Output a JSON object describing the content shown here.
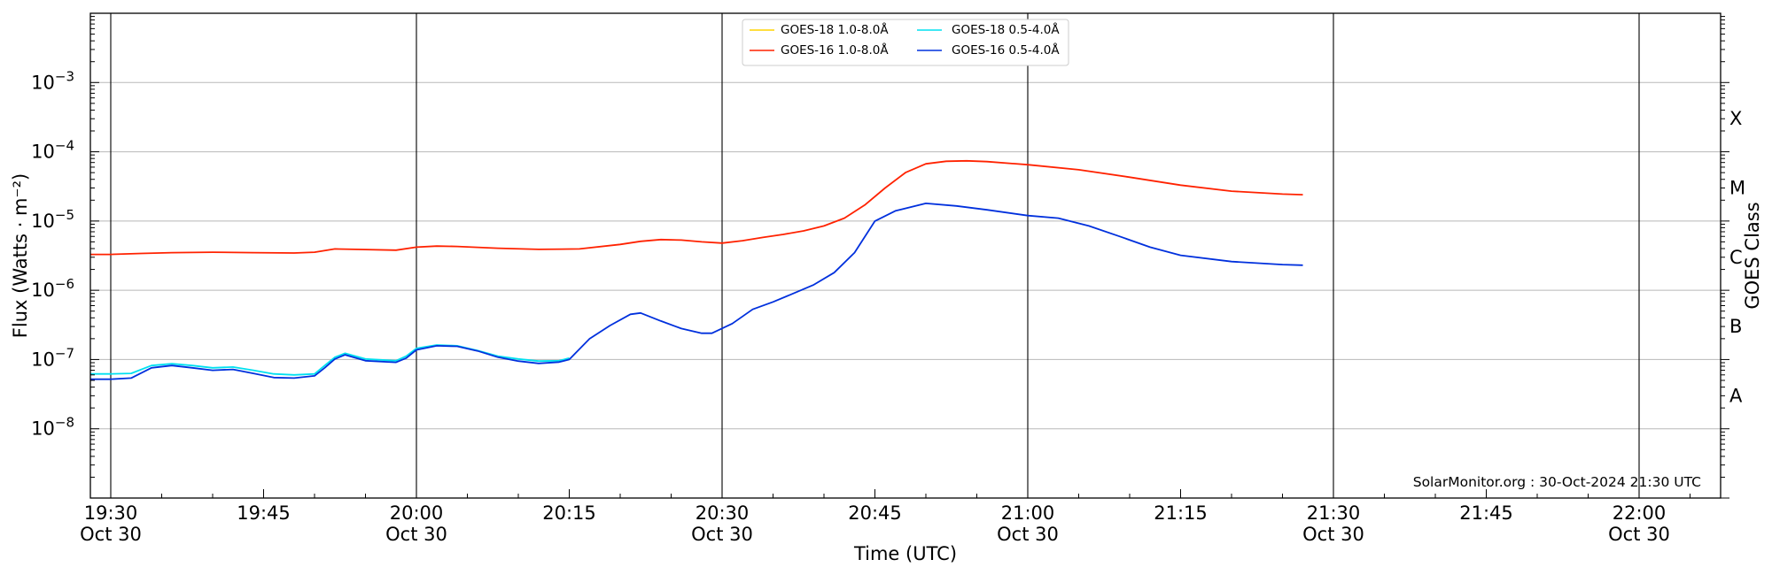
{
  "chart_data": {
    "type": "line",
    "x_axis": {
      "label": "Time (UTC)",
      "range": [
        "19:28",
        "22:08"
      ],
      "ticks": [
        {
          "time": "19:30",
          "label": "19:30",
          "date": "Oct 30"
        },
        {
          "time": "19:45",
          "label": "19:45",
          "date": ""
        },
        {
          "time": "20:00",
          "label": "20:00",
          "date": "Oct 30"
        },
        {
          "time": "20:15",
          "label": "20:15",
          "date": ""
        },
        {
          "time": "20:30",
          "label": "20:30",
          "date": "Oct 30"
        },
        {
          "time": "20:45",
          "label": "20:45",
          "date": ""
        },
        {
          "time": "21:00",
          "label": "21:00",
          "date": "Oct 30"
        },
        {
          "time": "21:15",
          "label": "21:15",
          "date": ""
        },
        {
          "time": "21:30",
          "label": "21:30",
          "date": "Oct 30"
        },
        {
          "time": "21:45",
          "label": "21:45",
          "date": ""
        },
        {
          "time": "22:00",
          "label": "22:00",
          "date": "Oct 30"
        }
      ],
      "vertical_lines": [
        "19:30",
        "20:00",
        "20:30",
        "21:00",
        "21:30",
        "22:00"
      ]
    },
    "y_axis": {
      "label": "Flux (Watts · m⁻²)",
      "scale": "log",
      "range": [
        1e-09,
        0.01
      ],
      "ticks": [
        {
          "value": 1e-08,
          "base": "10",
          "exp": "−8"
        },
        {
          "value": 1e-07,
          "base": "10",
          "exp": "−7"
        },
        {
          "value": 1e-06,
          "base": "10",
          "exp": "−6"
        },
        {
          "value": 1e-05,
          "base": "10",
          "exp": "−5"
        },
        {
          "value": 0.0001,
          "base": "10",
          "exp": "−4"
        },
        {
          "value": 0.001,
          "base": "10",
          "exp": "−3"
        }
      ],
      "grid": true
    },
    "right_axis": {
      "label": "GOES Class",
      "classes": [
        {
          "label": "A",
          "value": 3e-08
        },
        {
          "label": "B",
          "value": 3e-07
        },
        {
          "label": "C",
          "value": 3e-06
        },
        {
          "label": "M",
          "value": 3e-05
        },
        {
          "label": "X",
          "value": 0.0003
        }
      ]
    },
    "legend": {
      "placement": "top-center",
      "columns": 2
    },
    "credit": "SolarMonitor.org : 30-Oct-2024 21:30 UTC",
    "series": [
      {
        "name": "GOES-18 1.0-8.0Å",
        "color": "#ffd400",
        "x": [],
        "y": []
      },
      {
        "name": "GOES-16 1.0-8.0Å",
        "color": "#ff2200",
        "x": [
          "19:28",
          "19:30",
          "19:33",
          "19:36",
          "19:40",
          "19:44",
          "19:48",
          "19:50",
          "19:52",
          "19:54",
          "19:58",
          "20:00",
          "20:02",
          "20:04",
          "20:08",
          "20:12",
          "20:16",
          "20:20",
          "20:22",
          "20:24",
          "20:26",
          "20:28",
          "20:30",
          "20:32",
          "20:34",
          "20:36",
          "20:38",
          "20:40",
          "20:42",
          "20:44",
          "20:46",
          "20:48",
          "20:50",
          "20:52",
          "20:54",
          "20:56",
          "21:00",
          "21:05",
          "21:10",
          "21:15",
          "21:20",
          "21:25",
          "21:27"
        ],
        "y": [
          3.3e-06,
          3.3e-06,
          3.4e-06,
          3.5e-06,
          3.55e-06,
          3.5e-06,
          3.45e-06,
          3.55e-06,
          3.95e-06,
          3.9e-06,
          3.8e-06,
          4.2e-06,
          4.35e-06,
          4.3e-06,
          4.05e-06,
          3.9e-06,
          3.95e-06,
          4.6e-06,
          5.1e-06,
          5.4e-06,
          5.3e-06,
          5e-06,
          4.8e-06,
          5.2e-06,
          5.8e-06,
          6.4e-06,
          7.2e-06,
          8.5e-06,
          1.1e-05,
          1.7e-05,
          3e-05,
          5e-05,
          6.7e-05,
          7.3e-05,
          7.4e-05,
          7.2e-05,
          6.5e-05,
          5.5e-05,
          4.3e-05,
          3.3e-05,
          2.7e-05,
          2.45e-05,
          2.4e-05
        ]
      },
      {
        "name": "GOES-18 0.5-4.0Å",
        "color": "#00e0f0",
        "x": [
          "19:28",
          "19:30",
          "19:32",
          "19:34",
          "19:36",
          "19:38",
          "19:40",
          "19:42",
          "19:44",
          "19:46",
          "19:48",
          "19:50",
          "19:51",
          "19:52",
          "19:53",
          "19:55",
          "19:58",
          "19:59",
          "20:00",
          "20:02",
          "20:04",
          "20:06",
          "20:08",
          "20:10",
          "20:12",
          "20:14",
          "20:15"
        ],
        "y": [
          6.2e-08,
          6.2e-08,
          6.3e-08,
          8.2e-08,
          8.7e-08,
          8.2e-08,
          7.6e-08,
          7.8e-08,
          7e-08,
          6.2e-08,
          6e-08,
          6.2e-08,
          8.2e-08,
          1.08e-07,
          1.23e-07,
          1.02e-07,
          9.6e-08,
          1.12e-07,
          1.45e-07,
          1.62e-07,
          1.58e-07,
          1.35e-07,
          1.12e-07,
          1.02e-07,
          9.5e-08,
          9.6e-08,
          1.05e-07
        ]
      },
      {
        "name": "GOES-16 0.5-4.0Å",
        "color": "#0030dd",
        "x": [
          "19:28",
          "19:30",
          "19:32",
          "19:34",
          "19:36",
          "19:38",
          "19:40",
          "19:42",
          "19:44",
          "19:46",
          "19:48",
          "19:50",
          "19:51",
          "19:52",
          "19:53",
          "19:55",
          "19:58",
          "19:59",
          "20:00",
          "20:02",
          "20:04",
          "20:06",
          "20:08",
          "20:10",
          "20:12",
          "20:14",
          "20:15",
          "20:17",
          "20:19",
          "20:21",
          "20:22",
          "20:24",
          "20:26",
          "20:28",
          "20:29",
          "20:31",
          "20:33",
          "20:35",
          "20:37",
          "20:39",
          "20:41",
          "20:43",
          "20:45",
          "20:47",
          "20:50",
          "20:53",
          "20:56",
          "21:00",
          "21:03",
          "21:06",
          "21:09",
          "21:12",
          "21:15",
          "21:20",
          "21:25",
          "21:27"
        ],
        "y": [
          5.2e-08,
          5.2e-08,
          5.4e-08,
          7.6e-08,
          8.2e-08,
          7.6e-08,
          7e-08,
          7.2e-08,
          6.3e-08,
          5.5e-08,
          5.4e-08,
          5.8e-08,
          7.6e-08,
          1.02e-07,
          1.17e-07,
          9.6e-08,
          9.1e-08,
          1.05e-07,
          1.38e-07,
          1.58e-07,
          1.55e-07,
          1.33e-07,
          1.08e-07,
          9.5e-08,
          8.8e-08,
          9.2e-08,
          1e-07,
          2e-07,
          3.1e-07,
          4.5e-07,
          4.7e-07,
          3.6e-07,
          2.8e-07,
          2.4e-07,
          2.4e-07,
          3.3e-07,
          5.3e-07,
          6.8e-07,
          9e-07,
          1.2e-06,
          1.8e-06,
          3.5e-06,
          1e-05,
          1.4e-05,
          1.8e-05,
          1.65e-05,
          1.45e-05,
          1.2e-05,
          1.1e-05,
          8.5e-06,
          6e-06,
          4.2e-06,
          3.2e-06,
          2.6e-06,
          2.35e-06,
          2.3e-06
        ]
      }
    ]
  }
}
